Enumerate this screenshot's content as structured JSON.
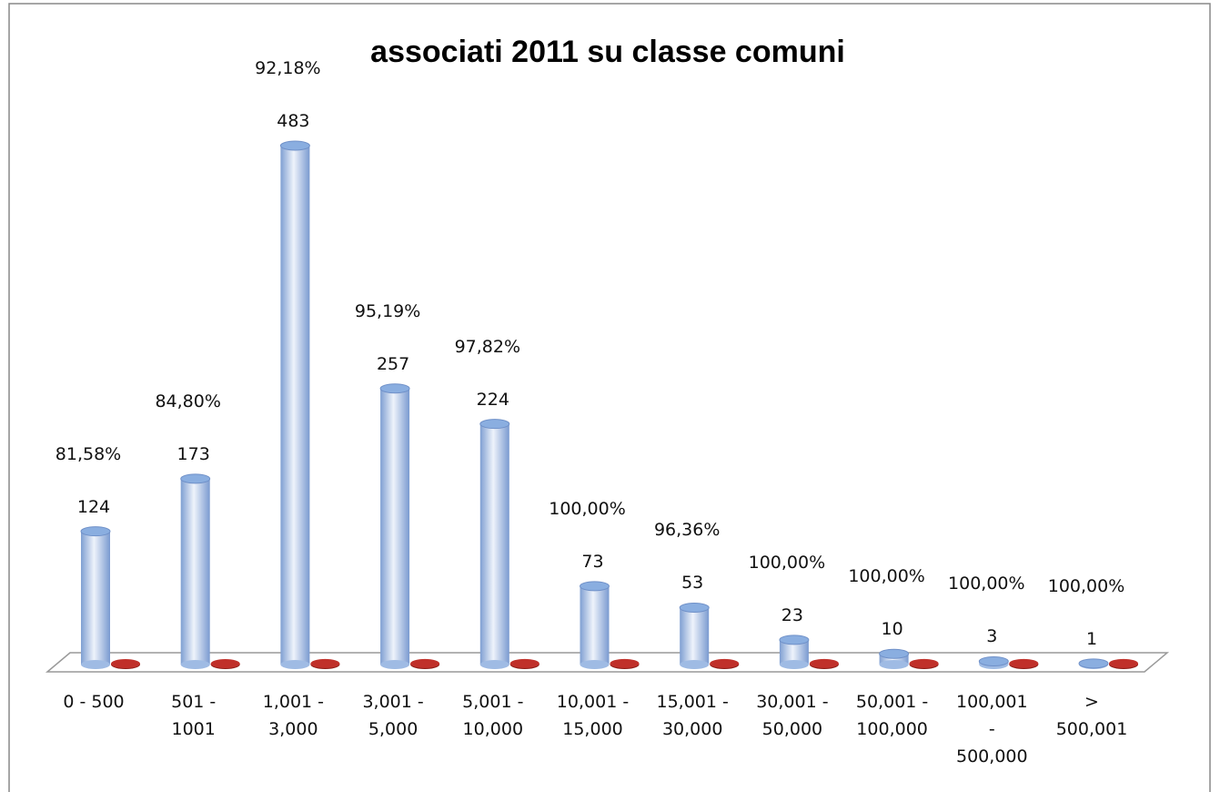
{
  "chart_data": {
    "type": "bar3d",
    "title": "associati 2011 su classe comuni",
    "categories": [
      "0 - 500",
      "501 -\n1001",
      "1,001 -\n3,000",
      "3,001 -\n5,000",
      "5,001 -\n10,000",
      "10,001 -\n15,000",
      "15,001 -\n30,000",
      "30,001 -\n50,000",
      "50,001 -\n100,000",
      "100,001\n-\n500,000",
      ">\n500,001"
    ],
    "series": [
      {
        "color": "#8aaee0",
        "values": [
          124,
          173,
          483,
          257,
          224,
          73,
          53,
          23,
          10,
          3,
          1
        ]
      },
      {
        "color": "#c0302a",
        "values": [
          0.8158,
          0.848,
          0.9218,
          0.9519,
          0.9782,
          1,
          0.9636,
          1,
          1,
          1,
          1
        ],
        "value_labels": [
          "81,58%",
          "84,80%",
          "92,18%",
          "95,19%",
          "97,82%",
          "100,00%",
          "96,36%",
          "100,00%",
          "100,00%",
          "100,00%",
          "100,00%"
        ]
      }
    ]
  }
}
